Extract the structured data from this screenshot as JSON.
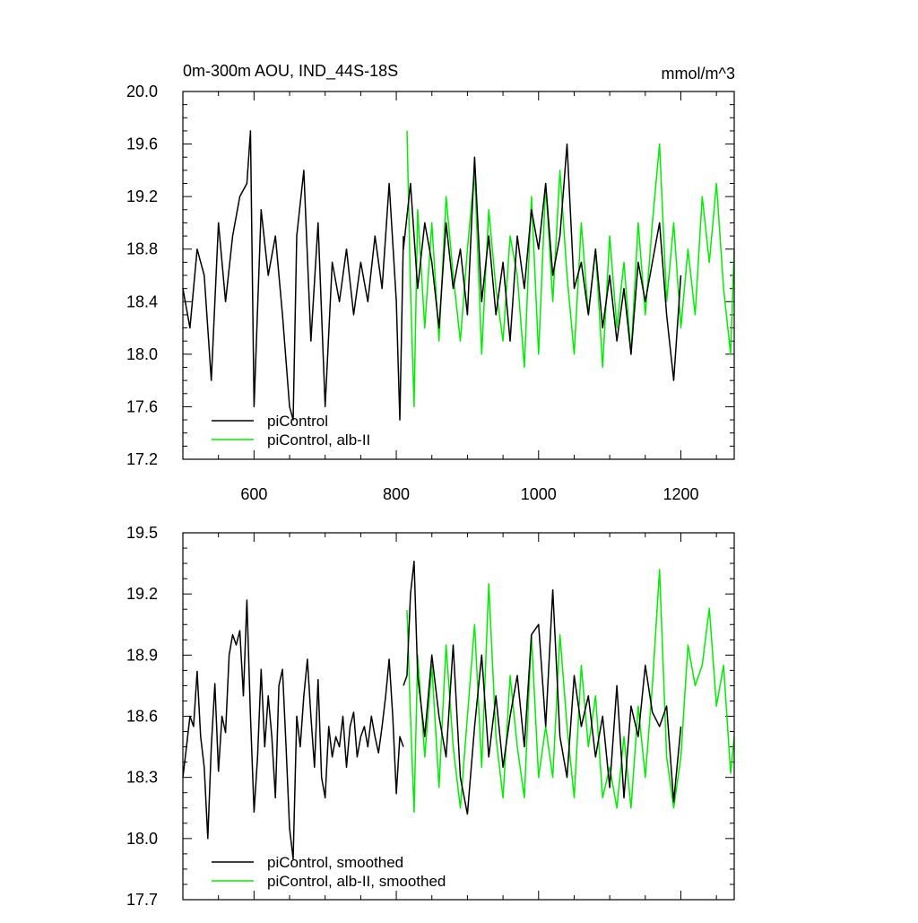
{
  "chart_data": [
    {
      "type": "line",
      "title": "0m-300m AOU, IND_44S-18S",
      "units": "mmol/m^3",
      "xlim": [
        500,
        1275
      ],
      "ylim": [
        17.2,
        20.0
      ],
      "xticks": [
        600,
        800,
        1000,
        1200
      ],
      "xtick_labels": [
        "600",
        "800",
        "1000",
        "1200"
      ],
      "yticks": [
        17.2,
        17.6,
        18.0,
        18.4,
        18.8,
        19.2,
        19.6,
        20.0
      ],
      "ytick_labels": [
        "17.2",
        "17.6",
        "18.0",
        "18.4",
        "18.8",
        "19.2",
        "19.6",
        "20.0"
      ],
      "legend": "bottom-left",
      "series": [
        {
          "name": "piControl",
          "color": "#000000",
          "x": [
            500,
            510,
            520,
            530,
            540,
            550,
            560,
            570,
            580,
            590,
            595,
            600,
            610,
            620,
            630,
            640,
            650,
            655,
            660,
            670,
            680,
            690,
            700,
            710,
            720,
            730,
            740,
            750,
            760,
            770,
            780,
            790,
            800,
            805,
            810
          ],
          "values": [
            18.5,
            18.2,
            18.8,
            18.6,
            17.8,
            19.0,
            18.4,
            18.9,
            19.2,
            19.3,
            19.7,
            17.6,
            19.1,
            18.6,
            18.9,
            18.3,
            17.6,
            17.5,
            18.9,
            19.4,
            18.1,
            19.0,
            17.6,
            18.7,
            18.4,
            18.8,
            18.3,
            18.7,
            18.4,
            18.9,
            18.5,
            19.3,
            18.4,
            17.5,
            18.9
          ]
        },
        {
          "name": "piControl, alb-II",
          "color": "#00ee00",
          "x": [
            815,
            820,
            825,
            830,
            840,
            850,
            860,
            870,
            880,
            890,
            900,
            910,
            920,
            930,
            940,
            950,
            960,
            970,
            980,
            990,
            1000,
            1010,
            1020,
            1030,
            1040,
            1050,
            1060,
            1070,
            1080,
            1090,
            1100,
            1110,
            1120,
            1130,
            1140,
            1150,
            1160,
            1170,
            1180,
            1190,
            1200,
            1210,
            1220,
            1230,
            1240,
            1250,
            1260,
            1270,
            1275
          ],
          "values": [
            19.7,
            18.5,
            17.6,
            19.1,
            18.2,
            19.0,
            18.1,
            19.2,
            18.6,
            18.1,
            18.8,
            19.4,
            18.0,
            19.1,
            18.5,
            18.1,
            18.9,
            18.6,
            17.9,
            19.2,
            18.0,
            19.3,
            18.4,
            19.4,
            18.6,
            18.0,
            19.0,
            18.3,
            18.8,
            17.9,
            18.9,
            18.2,
            18.7,
            18.0,
            19.0,
            18.3,
            19.0,
            19.6,
            18.4,
            19.0,
            18.2,
            18.8,
            18.3,
            19.2,
            18.7,
            19.3,
            18.5,
            18.0,
            18.8
          ]
        },
        {
          "name": "piControl",
          "color": "#000000",
          "x": [
            810,
            820,
            830,
            840,
            850,
            860,
            870,
            880,
            890,
            900,
            910,
            920,
            930,
            940,
            950,
            960,
            970,
            980,
            990,
            1000,
            1010,
            1020,
            1030,
            1040,
            1050,
            1060,
            1070,
            1080,
            1090,
            1100,
            1110,
            1120,
            1130,
            1140,
            1150,
            1160,
            1170,
            1180,
            1190,
            1200
          ],
          "values": [
            18.8,
            19.3,
            18.5,
            19.0,
            18.7,
            18.2,
            19.0,
            18.5,
            18.8,
            18.3,
            19.5,
            18.4,
            18.9,
            18.3,
            18.7,
            18.1,
            18.9,
            18.5,
            19.1,
            18.8,
            19.3,
            18.6,
            18.9,
            19.6,
            18.5,
            18.7,
            18.3,
            18.8,
            18.2,
            18.6,
            18.1,
            18.5,
            18.0,
            18.7,
            18.4,
            18.7,
            19.0,
            18.3,
            17.8,
            18.6
          ]
        }
      ]
    },
    {
      "type": "line",
      "xlim": [
        500,
        1275
      ],
      "ylim": [
        17.7,
        19.5
      ],
      "xticks": [
        600,
        800,
        1000,
        1200
      ],
      "yticks": [
        17.7,
        18.0,
        18.3,
        18.6,
        18.9,
        19.2,
        19.5
      ],
      "ytick_labels": [
        "17.7",
        "18.0",
        "18.3",
        "18.6",
        "18.9",
        "19.2",
        "19.5"
      ],
      "legend": "bottom-left",
      "series": [
        {
          "name": "piControl, smoothed",
          "color": "#000000",
          "x": [
            500,
            505,
            510,
            515,
            520,
            525,
            530,
            535,
            540,
            545,
            550,
            555,
            560,
            565,
            570,
            575,
            580,
            585,
            590,
            595,
            600,
            605,
            610,
            615,
            620,
            625,
            630,
            635,
            640,
            645,
            650,
            655,
            660,
            665,
            670,
            675,
            680,
            685,
            690,
            695,
            700,
            705,
            710,
            715,
            720,
            725,
            730,
            735,
            740,
            745,
            750,
            755,
            760,
            765,
            770,
            775,
            780,
            785,
            790,
            795,
            800,
            805,
            810
          ],
          "values": [
            18.3,
            18.45,
            18.6,
            18.55,
            18.82,
            18.5,
            18.35,
            18.0,
            18.45,
            18.76,
            18.33,
            18.6,
            18.52,
            18.9,
            19.0,
            18.95,
            19.02,
            18.7,
            19.17,
            18.6,
            18.13,
            18.4,
            18.83,
            18.45,
            18.7,
            18.5,
            18.2,
            18.75,
            18.83,
            18.45,
            18.05,
            17.9,
            18.6,
            18.45,
            18.7,
            18.88,
            18.6,
            18.35,
            18.78,
            18.3,
            18.2,
            18.55,
            18.4,
            18.5,
            18.45,
            18.6,
            18.35,
            18.55,
            18.62,
            18.4,
            18.5,
            18.55,
            18.45,
            18.6,
            18.5,
            18.42,
            18.55,
            18.7,
            18.88,
            18.6,
            18.22,
            18.5,
            18.45
          ]
        },
        {
          "name": "piControl, alb-II, smoothed",
          "color": "#00ee00",
          "x": [
            815,
            820,
            825,
            830,
            840,
            850,
            860,
            870,
            880,
            890,
            900,
            910,
            920,
            930,
            940,
            950,
            960,
            970,
            980,
            990,
            1000,
            1010,
            1020,
            1030,
            1040,
            1050,
            1060,
            1070,
            1080,
            1090,
            1100,
            1110,
            1120,
            1130,
            1140,
            1150,
            1160,
            1170,
            1180,
            1190,
            1200,
            1210,
            1220,
            1230,
            1240,
            1250,
            1260,
            1270,
            1275
          ],
          "values": [
            19.12,
            18.6,
            18.13,
            18.9,
            18.4,
            18.85,
            18.25,
            18.95,
            18.45,
            18.15,
            18.6,
            19.05,
            18.35,
            19.25,
            18.5,
            18.2,
            18.8,
            18.45,
            18.2,
            19.0,
            18.3,
            18.55,
            18.3,
            19.0,
            18.55,
            18.2,
            18.85,
            18.45,
            18.7,
            18.2,
            18.35,
            18.15,
            18.5,
            18.15,
            18.65,
            18.3,
            18.75,
            19.32,
            18.4,
            18.15,
            18.4,
            18.95,
            18.75,
            18.85,
            19.13,
            18.65,
            18.85,
            18.32,
            18.5
          ]
        },
        {
          "name": "piControl, smoothed",
          "color": "#000000",
          "x": [
            810,
            815,
            820,
            825,
            830,
            840,
            850,
            860,
            870,
            880,
            890,
            900,
            910,
            920,
            930,
            940,
            950,
            960,
            970,
            980,
            990,
            1000,
            1010,
            1020,
            1030,
            1040,
            1050,
            1060,
            1070,
            1080,
            1090,
            1100,
            1110,
            1120,
            1130,
            1140,
            1150,
            1160,
            1170,
            1180,
            1190,
            1200
          ],
          "values": [
            18.75,
            18.8,
            19.2,
            19.36,
            18.8,
            18.5,
            18.9,
            18.6,
            18.4,
            18.95,
            18.3,
            18.12,
            18.55,
            18.9,
            18.4,
            18.7,
            18.35,
            18.6,
            18.8,
            18.45,
            19.0,
            19.05,
            18.55,
            19.22,
            18.5,
            18.3,
            18.8,
            18.55,
            18.7,
            18.4,
            18.6,
            18.25,
            18.75,
            18.2,
            18.65,
            18.5,
            18.85,
            18.62,
            18.55,
            18.65,
            18.18,
            18.55
          ]
        }
      ]
    }
  ]
}
